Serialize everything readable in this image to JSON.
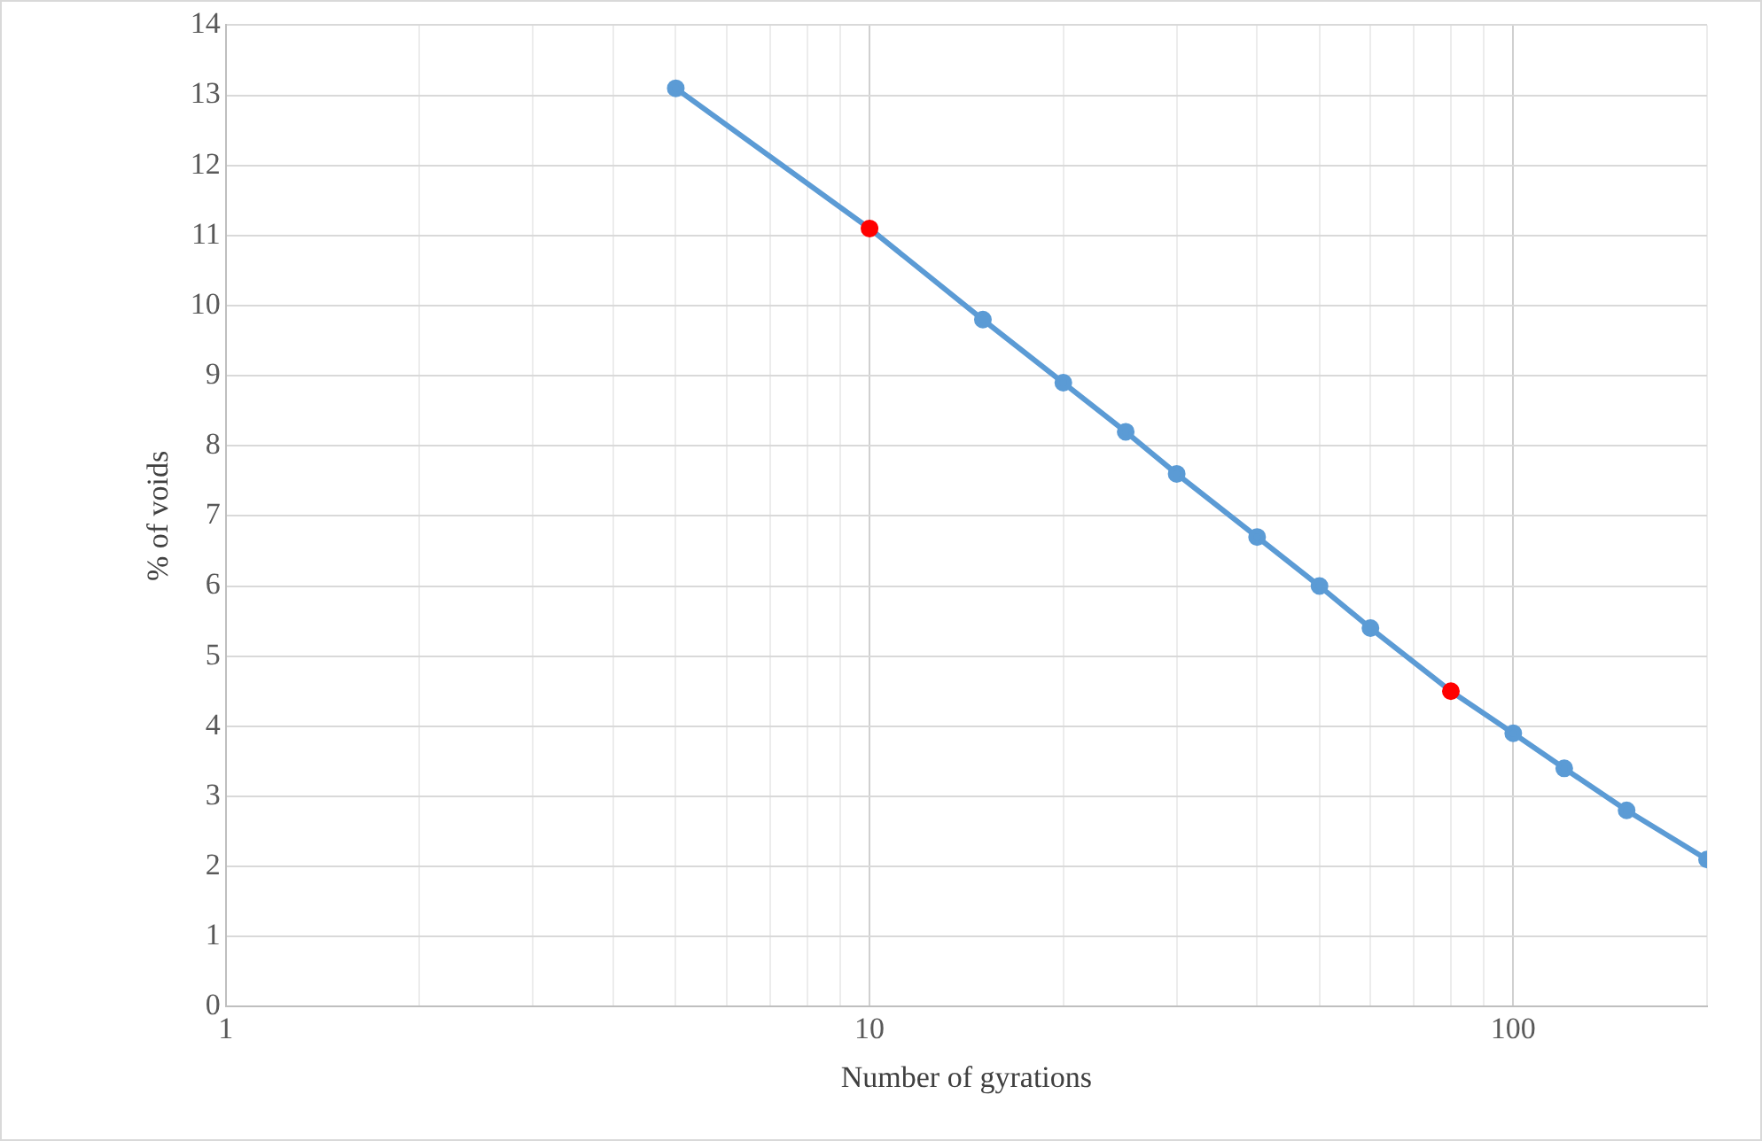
{
  "chart_data": {
    "type": "line",
    "xlabel": "Number of gyrations",
    "ylabel": "% of voids",
    "log": "x",
    "x": [
      5,
      10,
      15,
      20,
      25,
      30,
      40,
      50,
      60,
      80,
      100,
      120,
      150,
      200
    ],
    "series": [
      {
        "color": "#5b9bd5",
        "colors": [
          "#5b9bd5",
          "#ff0000",
          "#5b9bd5",
          "#5b9bd5",
          "#5b9bd5",
          "#5b9bd5",
          "#5b9bd5",
          "#5b9bd5",
          "#5b9bd5",
          "#ff0000",
          "#5b9bd5",
          "#5b9bd5",
          "#5b9bd5",
          "#5b9bd5"
        ],
        "values": [
          13.1,
          11.1,
          9.8,
          8.9,
          8.2,
          7.6,
          6.7,
          6.0,
          5.4,
          4.5,
          3.9,
          3.4,
          2.8,
          2.1
        ]
      }
    ],
    "xlim": [
      1,
      200
    ],
    "xticks": [
      1,
      {
        "value": 2,
        "label": null
      },
      {
        "value": 3,
        "label": null
      },
      {
        "value": 4,
        "label": null
      },
      {
        "value": 5,
        "label": null
      },
      {
        "value": 6,
        "label": null
      },
      {
        "value": 7,
        "label": null
      },
      {
        "value": 8,
        "label": null
      },
      {
        "value": 9,
        "label": null
      },
      10,
      {
        "value": 20,
        "label": null
      },
      {
        "value": 30,
        "label": null
      },
      {
        "value": 40,
        "label": null
      },
      {
        "value": 50,
        "label": null
      },
      {
        "value": 60,
        "label": null
      },
      {
        "value": 70,
        "label": null
      },
      {
        "value": 80,
        "label": null
      },
      {
        "value": 90,
        "label": null
      },
      100,
      {
        "value": 200,
        "label": null
      }
    ],
    "ylim": [
      0,
      14
    ],
    "yticks": [
      0,
      1,
      2,
      3,
      4,
      5,
      6,
      7,
      8,
      9,
      10,
      11,
      12,
      13,
      14
    ],
    "grid": true,
    "legend": false,
    "marker": "circle",
    "line_style": "solid"
  }
}
